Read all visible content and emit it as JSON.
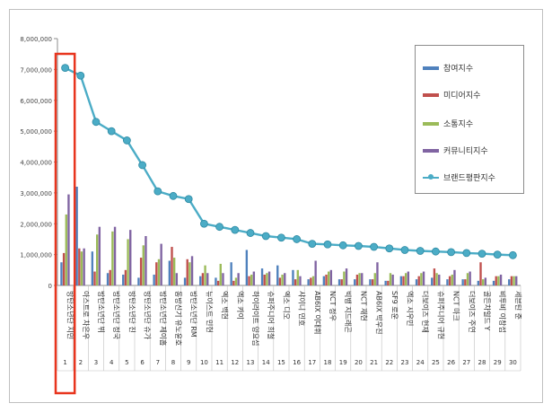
{
  "chart_data": {
    "type": "bar",
    "title": "",
    "xlabel": "",
    "ylabel": "",
    "ylim": [
      0,
      8000000
    ],
    "y_ticks": [
      "0",
      "1,000,000",
      "2,000,000",
      "3,000,000",
      "4,000,000",
      "5,000,000",
      "6,000,000",
      "7,000,000",
      "8,000,000"
    ],
    "categories": [
      "방탄소년단 지민",
      "아스트로 차은우",
      "방탄소년단 뷔",
      "방탄소년단 정국",
      "방탄소년단 진",
      "방탄소년단 슈가",
      "방탄소년단 제이홉",
      "동방신기 유노윤호",
      "방탄소년단 RM",
      "뉴이스트 민현",
      "엑소 백현",
      "엑소 카이",
      "하이라이트 양요섭",
      "슈퍼주니어 희철",
      "엑소 디오",
      "샤이니 민호",
      "AB6IX 이대휘",
      "NCT 정우",
      "빅뱅 지드래곤",
      "NCT 재현",
      "AB6IX 박우진",
      "SF9 로운",
      "엑소 시우민",
      "더보이즈 현재",
      "슈퍼주니어 규현",
      "NCT 마크",
      "더보이즈 주연",
      "골든차일드 Y",
      "비투비 이창섭",
      "세븐틴 준"
    ],
    "index_labels": [
      "1",
      "2",
      "3",
      "4",
      "5",
      "6",
      "7",
      "8",
      "9",
      "10",
      "11",
      "12",
      "13",
      "14",
      "15",
      "16",
      "17",
      "18",
      "19",
      "20",
      "21",
      "22",
      "23",
      "24",
      "25",
      "26",
      "27",
      "28",
      "29",
      "30"
    ],
    "series": [
      {
        "name": "참여지수",
        "type": "bar",
        "color": "#4f81bd",
        "values": [
          750000,
          3200000,
          1100000,
          400000,
          350000,
          250000,
          350000,
          800000,
          250000,
          300000,
          250000,
          750000,
          1150000,
          550000,
          650000,
          500000,
          200000,
          300000,
          200000,
          200000,
          200000,
          150000,
          300000,
          200000,
          250000,
          200000,
          200000,
          150000,
          150000,
          200000
        ]
      },
      {
        "name": "미디어지수",
        "type": "bar",
        "color": "#c0504d",
        "values": [
          1050000,
          1200000,
          450000,
          500000,
          500000,
          900000,
          750000,
          1250000,
          850000,
          400000,
          150000,
          150000,
          300000,
          350000,
          250000,
          200000,
          250000,
          350000,
          200000,
          350000,
          200000,
          150000,
          300000,
          300000,
          550000,
          300000,
          200000,
          750000,
          300000,
          300000
        ]
      },
      {
        "name": "소통지수",
        "type": "bar",
        "color": "#9bbb59",
        "values": [
          2300000,
          1100000,
          1650000,
          1750000,
          1500000,
          1300000,
          850000,
          900000,
          750000,
          650000,
          700000,
          250000,
          350000,
          400000,
          350000,
          500000,
          300000,
          450000,
          450000,
          400000,
          400000,
          400000,
          400000,
          400000,
          400000,
          350000,
          400000,
          200000,
          300000,
          300000
        ]
      },
      {
        "name": "커뮤니티지수",
        "type": "bar",
        "color": "#8064a2",
        "values": [
          2950000,
          1200000,
          1900000,
          1900000,
          1800000,
          1600000,
          1350000,
          400000,
          950000,
          400000,
          400000,
          400000,
          450000,
          450000,
          400000,
          300000,
          800000,
          500000,
          550000,
          400000,
          750000,
          350000,
          450000,
          450000,
          350000,
          500000,
          450000,
          250000,
          350000,
          300000
        ]
      },
      {
        "name": "브랜드평판지수",
        "type": "line",
        "color": "#4bacc6",
        "values": [
          7050000,
          6800000,
          5300000,
          5000000,
          4700000,
          3900000,
          3050000,
          2900000,
          2800000,
          2000000,
          1900000,
          1800000,
          1700000,
          1600000,
          1550000,
          1500000,
          1350000,
          1330000,
          1300000,
          1280000,
          1250000,
          1200000,
          1150000,
          1120000,
          1100000,
          1080000,
          1050000,
          1030000,
          1000000,
          980000
        ]
      }
    ],
    "highlight": {
      "index": 0,
      "color": "#e8351e"
    },
    "legend_position": "right",
    "grid": false
  }
}
